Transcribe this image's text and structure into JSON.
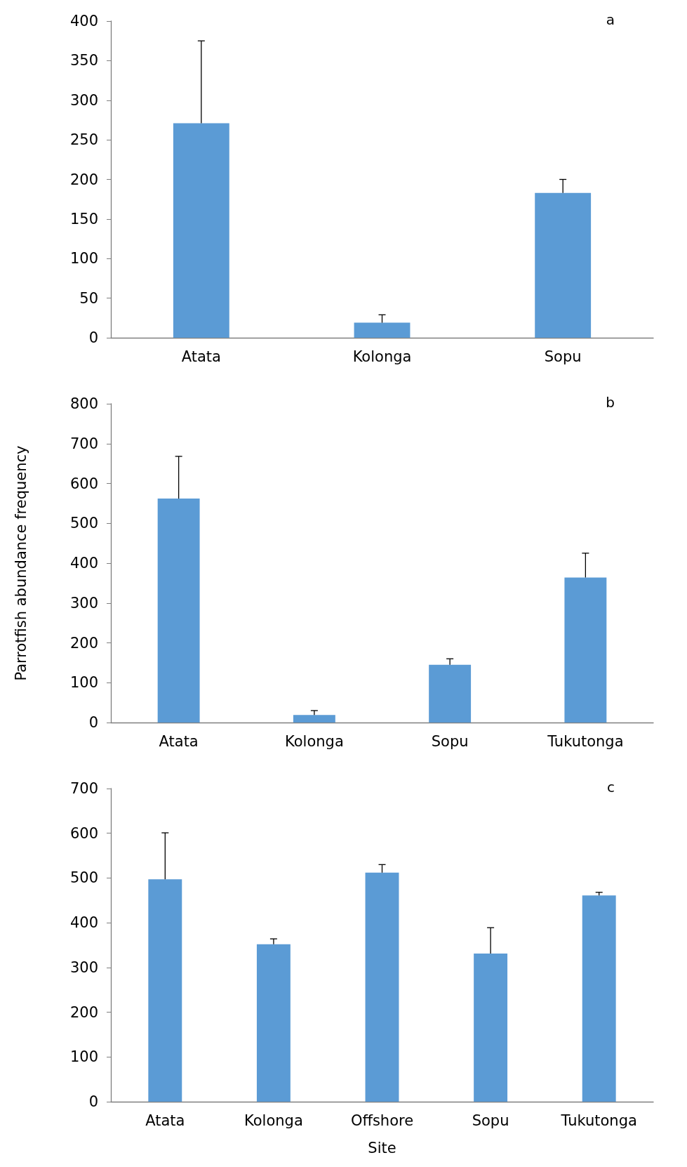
{
  "chart_data": [
    {
      "type": "bar",
      "categories": [
        "Atata",
        "Kolonga",
        "Sopu"
      ],
      "values": [
        271,
        19,
        183
      ],
      "errors": [
        [
          271,
          375
        ],
        [
          19,
          29
        ],
        [
          183,
          200
        ]
      ],
      "color": "#5b9bd5",
      "ylim": [
        0,
        400
      ],
      "yticks": [
        0,
        50,
        100,
        150,
        200,
        250,
        300,
        350,
        400
      ],
      "grid": false,
      "annotations": [
        "a"
      ]
    },
    {
      "type": "bar",
      "categories": [
        "Atata",
        "Kolonga",
        "Sopu",
        "Tukutonga"
      ],
      "values": [
        562,
        19,
        145,
        364
      ],
      "errors": [
        [
          562,
          668
        ],
        [
          19,
          30
        ],
        [
          145,
          160
        ],
        [
          364,
          425
        ]
      ],
      "color": "#5b9bd5",
      "ylim": [
        0,
        800
      ],
      "yticks": [
        0,
        100,
        200,
        300,
        400,
        500,
        600,
        700,
        800
      ],
      "grid": false,
      "ylabel": "Parrotfish abundance frequency",
      "annotations": [
        "b"
      ]
    },
    {
      "type": "bar",
      "categories": [
        "Atata",
        "Kolonga",
        "Offshore",
        "Sopu",
        "Tukutonga"
      ],
      "values": [
        497,
        352,
        512,
        331,
        461
      ],
      "errors": [
        [
          497,
          601
        ],
        [
          352,
          364
        ],
        [
          512,
          530
        ],
        [
          331,
          389
        ],
        [
          461,
          468
        ]
      ],
      "color": "#5b9bd5",
      "ylim": [
        0,
        700
      ],
      "yticks": [
        0,
        100,
        200,
        300,
        400,
        500,
        600,
        700
      ],
      "grid": false,
      "xlabel": "Site",
      "annotations": [
        "c"
      ]
    }
  ]
}
